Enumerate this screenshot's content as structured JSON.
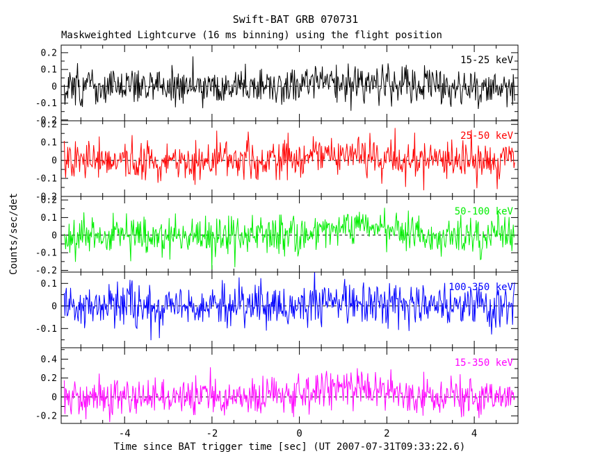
{
  "chart_data": {
    "type": "line",
    "title": "Swift-BAT GRB 070731",
    "subtitle": "Maskweighted Lightcurve (16 ms binning) using the flight position",
    "xlabel": "Time since BAT trigger time [sec] (UT 2007-07-31T09:33:22.6)",
    "ylabel": "Counts/sec/det",
    "xlim": [
      -5.45,
      5.0
    ],
    "x_data_range": [
      -5.38,
      4.93
    ],
    "bin_sec": 0.016,
    "xticks": [
      {
        "v": -4,
        "label": "-4"
      },
      {
        "v": -2,
        "label": "-2"
      },
      {
        "v": 0,
        "label": "0"
      },
      {
        "v": 2,
        "label": "2"
      },
      {
        "v": 4,
        "label": "4"
      }
    ],
    "x_minor_step": 0.5,
    "x_major_step": 2,
    "grid": false,
    "zero_line": "dashed",
    "legend_position": "inside-top-right-per-panel",
    "panels": [
      {
        "label": "15-25 keV",
        "color": "#000000",
        "ylim": [
          -0.205,
          0.245
        ],
        "y_minor_step": 0.05,
        "yticks": [
          {
            "v": 0.2,
            "label": "0.2"
          },
          {
            "v": 0.1,
            "label": "0.1"
          },
          {
            "v": 0,
            "label": "0"
          },
          {
            "v": -0.1,
            "label": "-0.1"
          },
          {
            "v": -0.2,
            "label": "-0.2"
          }
        ],
        "noise_sigma": 0.055,
        "mean": 0.0,
        "burst": {
          "amp": 0.015,
          "t0": 1.1,
          "sigma": 0.8
        },
        "seed": 101
      },
      {
        "label": "25-50 keV",
        "color": "#ff0000",
        "ylim": [
          -0.2,
          0.22
        ],
        "y_minor_step": 0.05,
        "yticks": [
          {
            "v": 0.2,
            "label": "0.2"
          },
          {
            "v": 0.1,
            "label": "0.1"
          },
          {
            "v": 0,
            "label": "0"
          },
          {
            "v": -0.1,
            "label": "-0.1"
          },
          {
            "v": -0.2,
            "label": "-0.2"
          }
        ],
        "noise_sigma": 0.055,
        "mean": 0.0,
        "burst": {
          "amp": 0.025,
          "t0": 1.0,
          "sigma": 0.7
        },
        "seed": 202
      },
      {
        "label": "50-100 keV",
        "color": "#00ee00",
        "ylim": [
          -0.21,
          0.22
        ],
        "y_minor_step": 0.05,
        "yticks": [
          {
            "v": 0.2,
            "label": "0.2"
          },
          {
            "v": 0.1,
            "label": "0.1"
          },
          {
            "v": 0,
            "label": "0"
          },
          {
            "v": -0.1,
            "label": "-0.1"
          },
          {
            "v": -0.2,
            "label": "-0.2"
          }
        ],
        "noise_sigma": 0.055,
        "mean": 0.0,
        "burst": {
          "amp": 0.05,
          "t0": 1.2,
          "sigma": 0.7
        },
        "seed": 303
      },
      {
        "label": "100-350 keV",
        "color": "#0000ff",
        "ylim": [
          -0.185,
          0.15
        ],
        "y_minor_step": 0.05,
        "yticks": [
          {
            "v": 0.1,
            "label": "0.1"
          },
          {
            "v": 0,
            "label": "0"
          },
          {
            "v": -0.1,
            "label": "-0.1"
          }
        ],
        "noise_sigma": 0.05,
        "mean": 0.0,
        "burst": {
          "amp": 0.02,
          "t0": 1.1,
          "sigma": 0.8
        },
        "seed": 404
      },
      {
        "label": "15-350 keV",
        "color": "#ff00ff",
        "ylim": [
          -0.28,
          0.52
        ],
        "y_minor_step": 0.1,
        "yticks": [
          {
            "v": 0.4,
            "label": "0.4"
          },
          {
            "v": 0.2,
            "label": "0.2"
          },
          {
            "v": 0,
            "label": "0"
          },
          {
            "v": -0.2,
            "label": "-0.2"
          }
        ],
        "noise_sigma": 0.1,
        "mean": 0.0,
        "burst": {
          "amp": 0.12,
          "t0": 1.15,
          "sigma": 0.75
        },
        "seed": 505
      }
    ]
  }
}
